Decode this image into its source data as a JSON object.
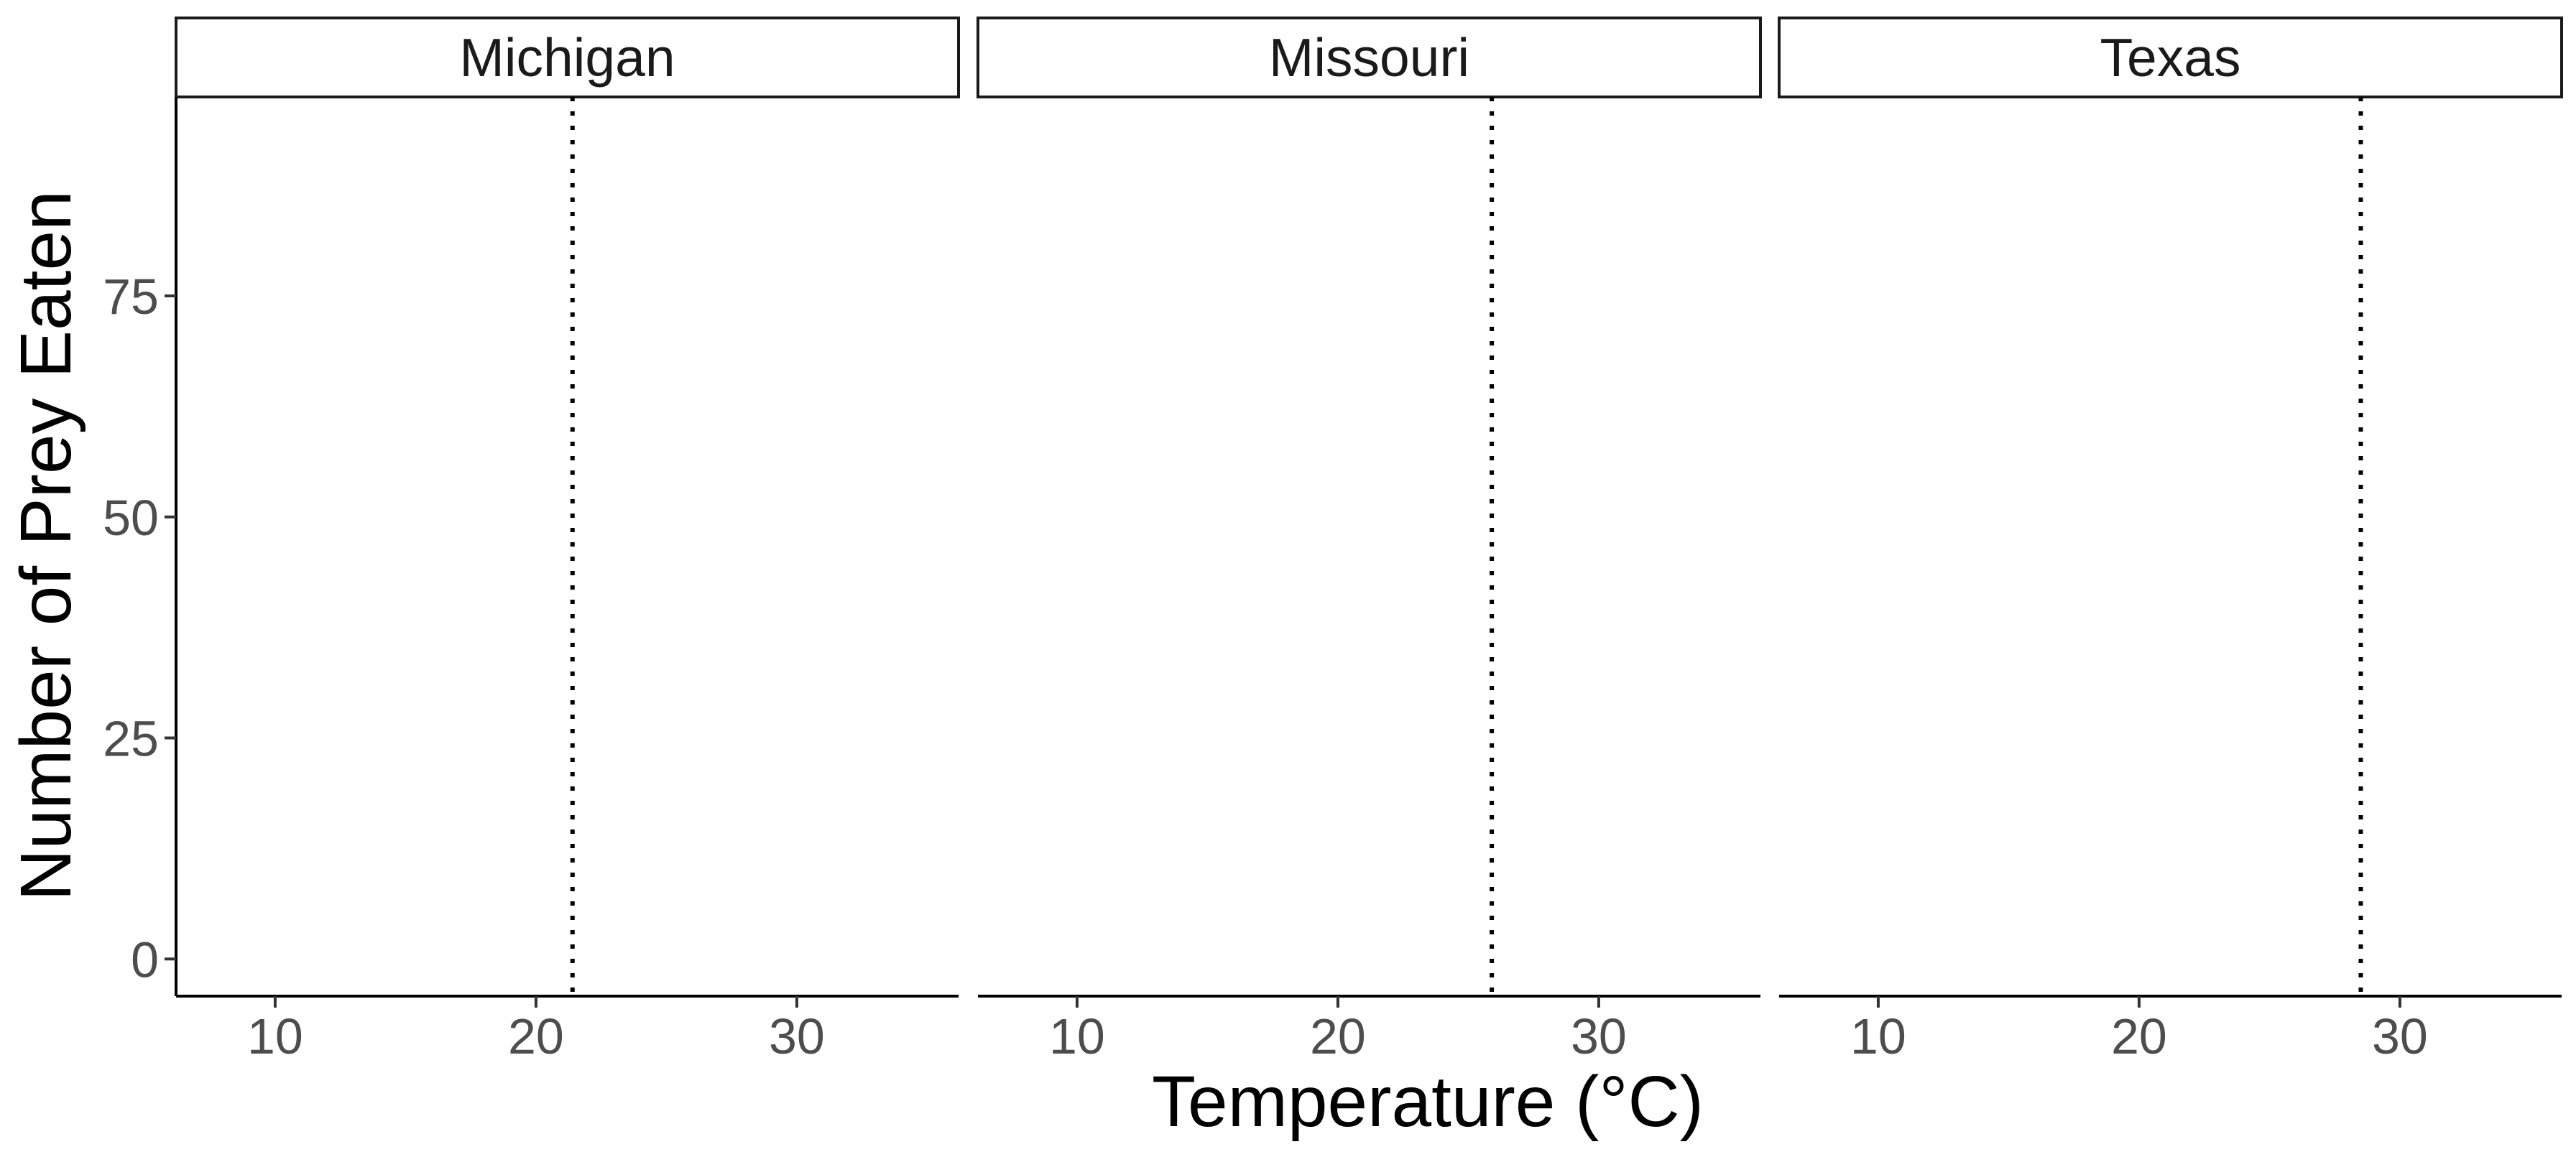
{
  "chart_data": {
    "type": "line",
    "facet_variable": "state",
    "facets": [
      {
        "label": "Michigan",
        "vline_x": 21.4
      },
      {
        "label": "Missouri",
        "vline_x": 25.9
      },
      {
        "label": "Texas",
        "vline_x": 28.5
      }
    ],
    "series": [],
    "xlabel": "Temperature (°C)",
    "ylabel": "Number of Prey Eaten",
    "x_ticks": [
      10,
      20,
      30
    ],
    "y_ticks": [
      0,
      25,
      50,
      75
    ],
    "xlim": [
      6.2,
      36.2
    ],
    "ylim": [
      -4.2,
      97.5
    ],
    "reference_line_style": "dotted",
    "grid": false,
    "legend": "none"
  }
}
